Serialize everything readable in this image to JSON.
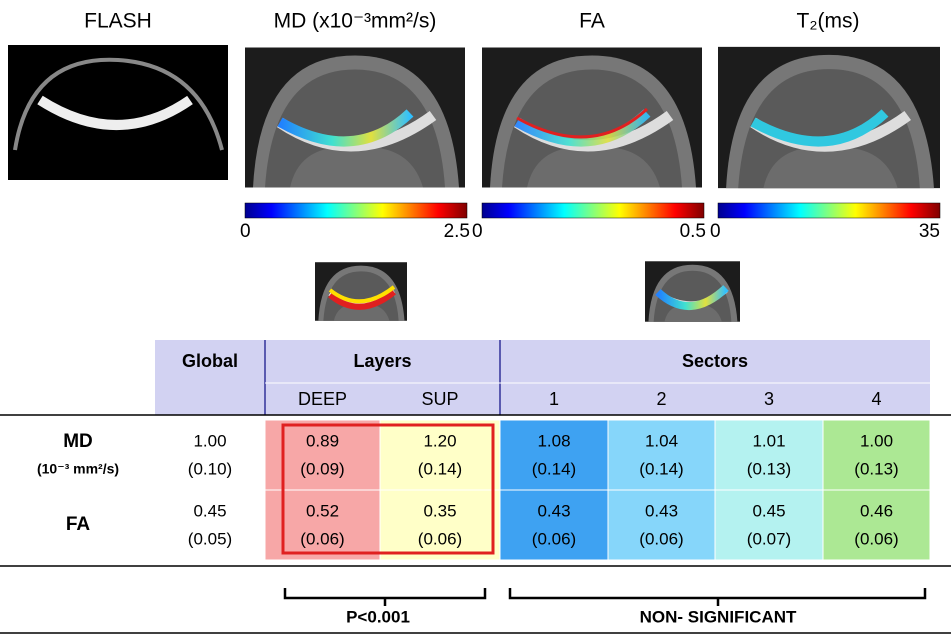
{
  "panels": [
    {
      "title": "FLASH"
    },
    {
      "title": "MD  (x10⁻³mm²/s)",
      "colorbar": {
        "min": 0,
        "max": 2.5
      }
    },
    {
      "title": "FA",
      "colorbar": {
        "min": 0,
        "max": 0.5
      }
    },
    {
      "title": "T₂(ms)",
      "colorbar": {
        "min": 0,
        "max": 35
      }
    }
  ],
  "table": {
    "group_headers": [
      "Global",
      "Layers",
      "Sectors"
    ],
    "subheaders": [
      "DEEP",
      "SUP",
      "1",
      "2",
      "3",
      "4"
    ],
    "rows": [
      {
        "label": "MD",
        "unit": "(10⁻³ mm²/s)",
        "cells": [
          [
            "1.00",
            "(0.10)"
          ],
          [
            "0.89",
            "(0.09)"
          ],
          [
            "1.20",
            "(0.14)"
          ],
          [
            "1.08",
            "(0.14)"
          ],
          [
            "1.04",
            "(0.14)"
          ],
          [
            "1.01",
            "(0.13)"
          ],
          [
            "1.00",
            "(0.13)"
          ]
        ]
      },
      {
        "label": "FA",
        "cells": [
          [
            "0.45",
            "(0.05)"
          ],
          [
            "0.52",
            "(0.06)"
          ],
          [
            "0.35",
            "(0.06)"
          ],
          [
            "0.43",
            "(0.06)"
          ],
          [
            "0.43",
            "(0.06)"
          ],
          [
            "0.45",
            "(0.07)"
          ],
          [
            "0.46",
            "(0.06)"
          ]
        ]
      }
    ]
  },
  "notes": [
    "P<0.001",
    "NON- SIGNIFICANT"
  ]
}
